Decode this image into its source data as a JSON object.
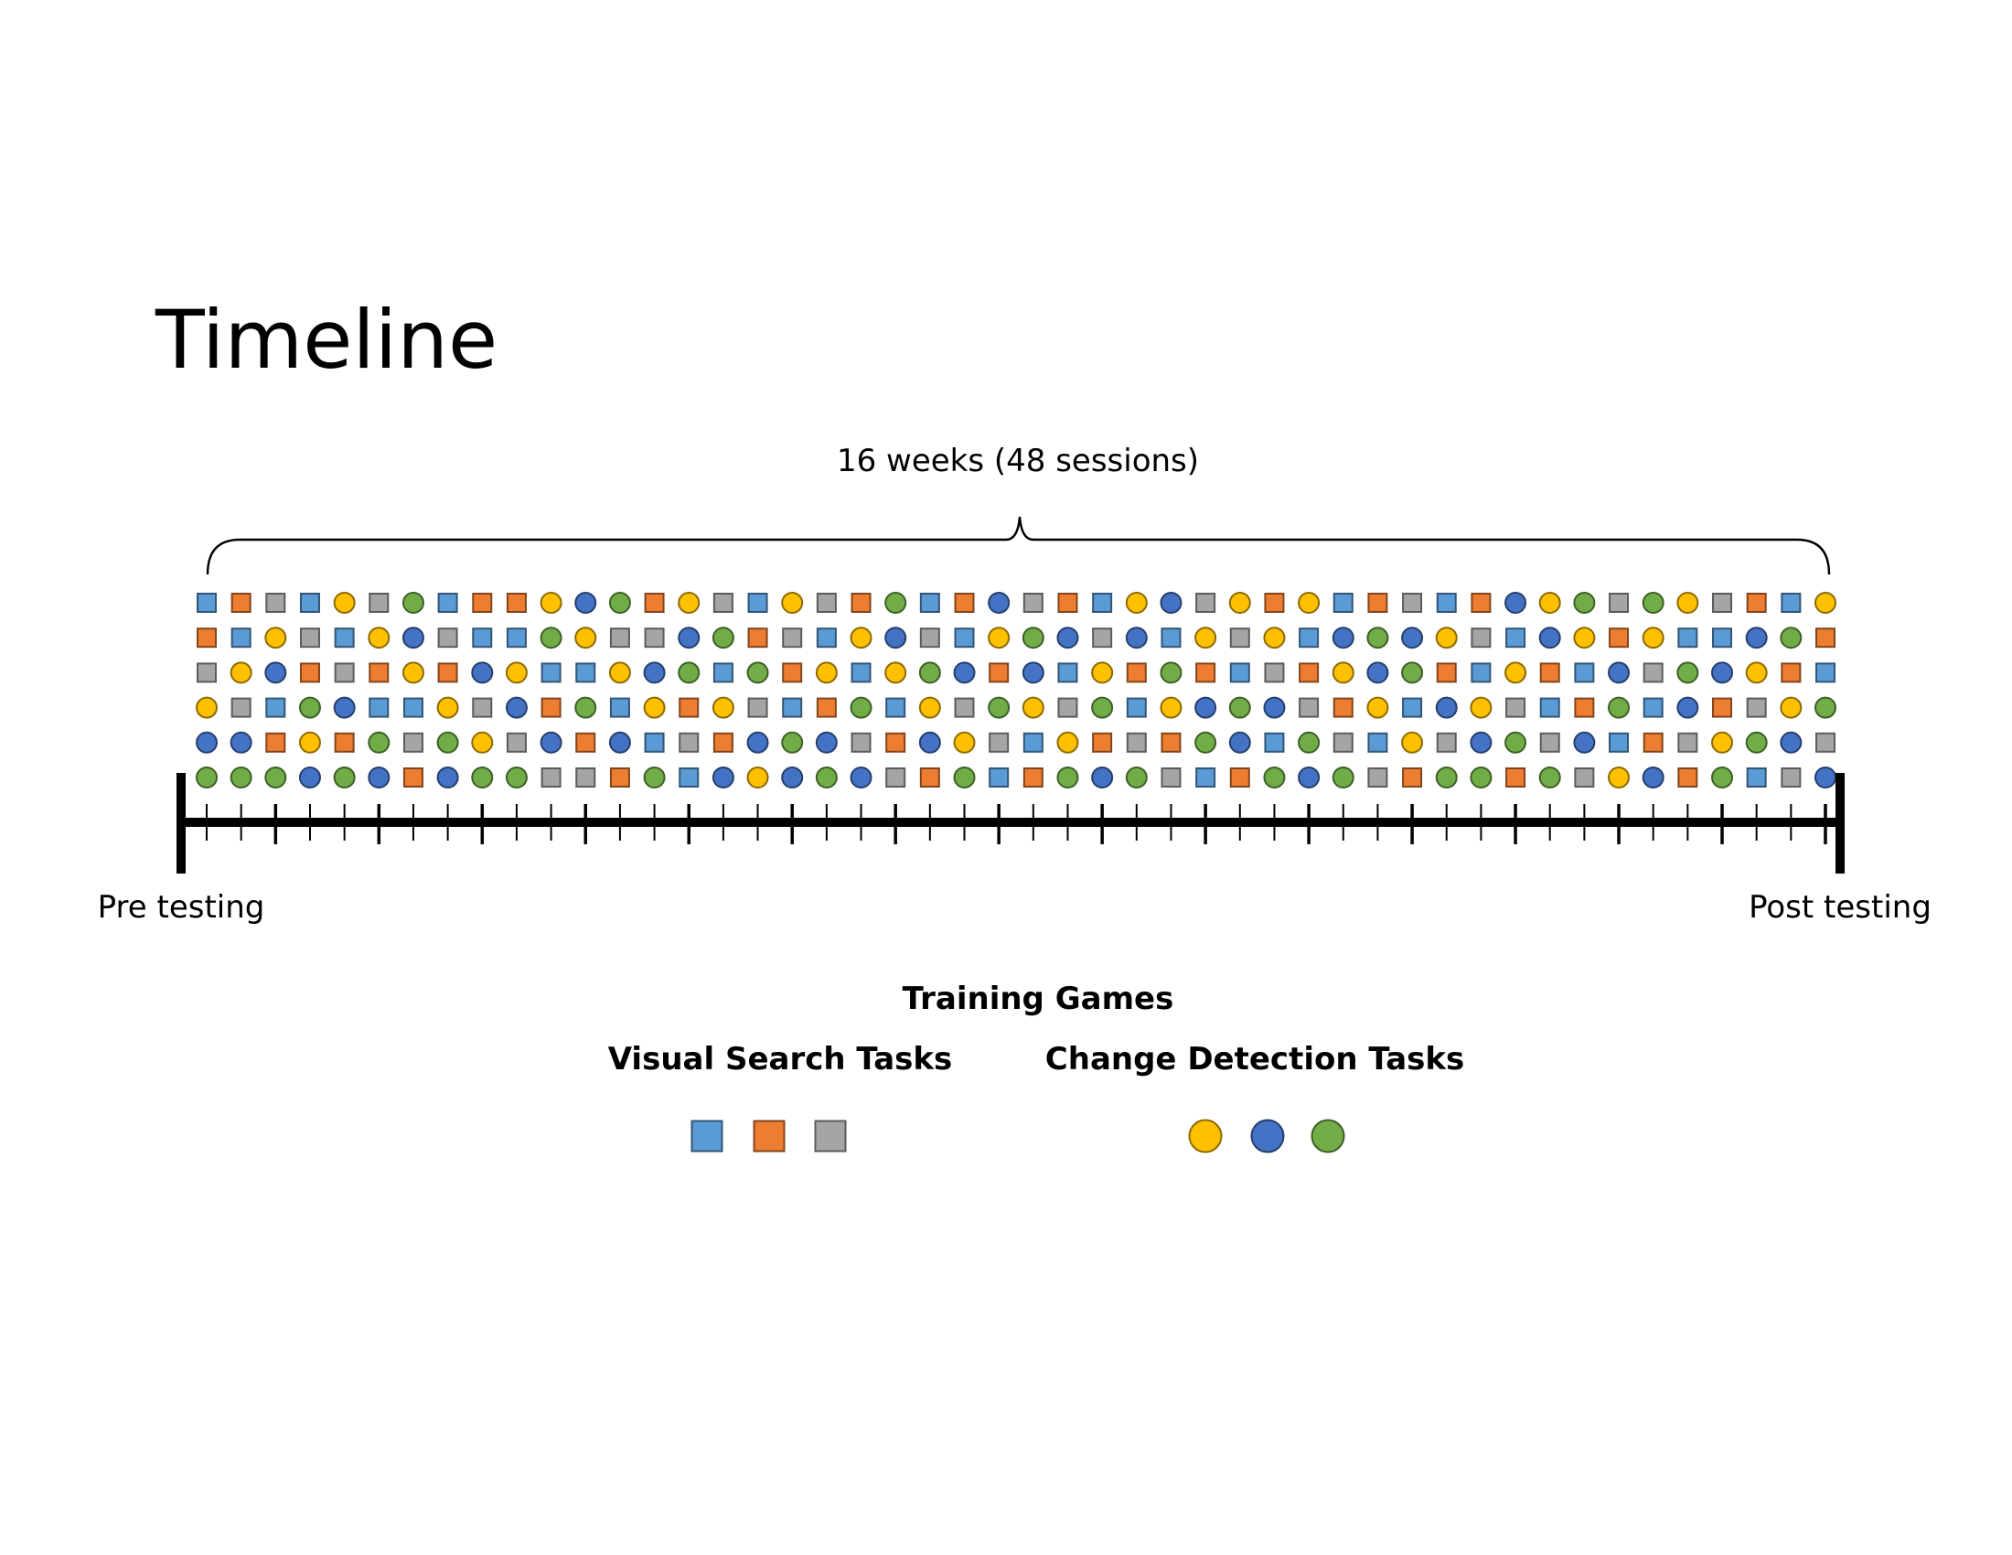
{
  "title": "Timeline",
  "span_label": "16 weeks (48 sessions)",
  "start_label": "Pre testing",
  "end_label": "Post testing",
  "legend": {
    "title": "Training Games",
    "groups": [
      {
        "label": "Visual Search Tasks",
        "shape": "square",
        "items": [
          "blue",
          "orange",
          "gray"
        ]
      },
      {
        "label": "Change Detection Tasks",
        "shape": "circle",
        "items": [
          "yellow",
          "darkblue",
          "green"
        ]
      }
    ]
  },
  "colors": {
    "blue": "#5b9bd5",
    "orange": "#ed7d31",
    "gray": "#a5a5a5",
    "yellow": "#ffc000",
    "darkblue": "#4472c4",
    "green": "#70ad47"
  },
  "sessions": 48,
  "games_per_session": 6,
  "grid": [
    [
      "S1",
      "S2",
      "S3",
      "S1",
      "C1",
      "S3",
      "C3",
      "S1",
      "S2",
      "S2",
      "C1",
      "C2",
      "C3",
      "S2",
      "C1",
      "S3",
      "S1",
      "C1",
      "S3",
      "S2",
      "C3",
      "S1",
      "S2",
      "C2",
      "S3",
      "S2",
      "S1",
      "C1",
      "C2",
      "S3",
      "C1",
      "S2",
      "C1",
      "S1",
      "S2",
      "S3",
      "S1",
      "S2",
      "C2",
      "C1",
      "C3",
      "S3",
      "C3",
      "C1",
      "S3",
      "S2",
      "S1",
      "C1"
    ],
    [
      "S2",
      "S1",
      "C1",
      "S3",
      "S1",
      "C1",
      "C2",
      "S3",
      "S1",
      "S1",
      "C3",
      "C1",
      "S3",
      "S3",
      "C2",
      "C3",
      "S2",
      "S3",
      "S1",
      "C1",
      "C2",
      "S3",
      "S1",
      "C1",
      "C3",
      "C2",
      "S3",
      "C2",
      "S1",
      "C1",
      "S3",
      "C1",
      "S1",
      "C2",
      "C3",
      "C2",
      "C1",
      "S3",
      "S1",
      "C2",
      "C1",
      "S2",
      "C1",
      "S1",
      "S1",
      "C2",
      "C3",
      "S2"
    ],
    [
      "S3",
      "C1",
      "C2",
      "S2",
      "S3",
      "S2",
      "C1",
      "S2",
      "C2",
      "C1",
      "S1",
      "S1",
      "C1",
      "C2",
      "C3",
      "S1",
      "C3",
      "S2",
      "C1",
      "S1",
      "C1",
      "C3",
      "C2",
      "S2",
      "C2",
      "S1",
      "C1",
      "S2",
      "C3",
      "S2",
      "S1",
      "S3",
      "S2",
      "C1",
      "C2",
      "C3",
      "S2",
      "S1",
      "C1",
      "S2",
      "S1",
      "C2",
      "S3",
      "C3",
      "C2",
      "C1",
      "S2",
      "S1"
    ],
    [
      "C1",
      "S3",
      "S1",
      "C3",
      "C2",
      "S1",
      "S1",
      "C1",
      "S3",
      "C2",
      "S2",
      "C3",
      "S1",
      "C1",
      "S2",
      "C1",
      "S3",
      "S1",
      "S2",
      "C3",
      "S1",
      "C1",
      "S3",
      "C3",
      "C1",
      "S3",
      "C3",
      "S1",
      "C1",
      "C2",
      "C3",
      "C2",
      "S3",
      "S2",
      "C1",
      "S1",
      "C2",
      "C1",
      "S3",
      "S1",
      "S2",
      "C3",
      "S1",
      "C2",
      "S2",
      "S3",
      "C1",
      "C3"
    ],
    [
      "C2",
      "C2",
      "S2",
      "C1",
      "S2",
      "C3",
      "S3",
      "C3",
      "C1",
      "S3",
      "C2",
      "S2",
      "C2",
      "S1",
      "S3",
      "S2",
      "C2",
      "C3",
      "C2",
      "S3",
      "S2",
      "C2",
      "C1",
      "S3",
      "S1",
      "C1",
      "S2",
      "S3",
      "S2",
      "C3",
      "C2",
      "S1",
      "C3",
      "S3",
      "S1",
      "C1",
      "S3",
      "C2",
      "C3",
      "S3",
      "C2",
      "S1",
      "S2",
      "S3",
      "C1",
      "C3",
      "C2",
      "S3"
    ],
    [
      "C3",
      "C3",
      "C3",
      "C2",
      "C3",
      "C2",
      "S2",
      "C2",
      "C3",
      "C3",
      "S3",
      "S3",
      "S2",
      "C3",
      "S1",
      "C2",
      "C1",
      "C2",
      "C3",
      "C2",
      "S3",
      "S2",
      "C3",
      "S1",
      "S2",
      "C3",
      "C2",
      "C3",
      "S3",
      "S1",
      "S2",
      "C3",
      "C2",
      "C3",
      "S3",
      "S2",
      "C3",
      "C3",
      "S2",
      "C3",
      "S3",
      "C1",
      "C2",
      "S2",
      "C3",
      "S1",
      "S3",
      "C2"
    ]
  ]
}
